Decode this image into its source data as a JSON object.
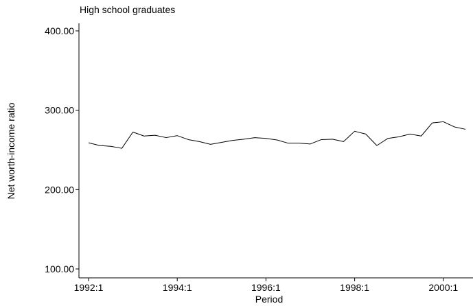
{
  "chart_data": {
    "type": "line",
    "title": "High school graduates",
    "xlabel": "Period",
    "ylabel": "Net worth-income ratio",
    "x_start": "1992:1",
    "x_frequency": "quarterly",
    "xlim": [
      "1992:1",
      "2000:3"
    ],
    "ylim": [
      100,
      400
    ],
    "x_ticks": [
      "1992:1",
      "1994:1",
      "1996:1",
      "1998:1",
      "2000:1"
    ],
    "y_ticks": [
      "100.00",
      "200.00",
      "300.00",
      "400.00"
    ],
    "y_tick_values": [
      100,
      200,
      300,
      400
    ],
    "grid": false,
    "legend": "none",
    "series": [
      {
        "x": [
          "1992:1",
          "1992:2",
          "1992:3",
          "1992:4",
          "1993:1",
          "1993:2",
          "1993:3",
          "1993:4",
          "1994:1",
          "1994:2",
          "1994:3",
          "1994:4",
          "1995:1",
          "1995:2",
          "1995:3",
          "1995:4",
          "1996:1",
          "1996:2",
          "1996:3",
          "1996:4",
          "1997:1",
          "1997:2",
          "1997:3",
          "1997:4",
          "1998:1",
          "1998:2",
          "1998:3",
          "1998:4",
          "1999:1",
          "1999:2",
          "1999:3",
          "1999:4",
          "2000:1",
          "2000:2",
          "2000:3"
        ],
        "values": [
          259,
          255.5,
          254.5,
          252,
          272.5,
          267.5,
          268.5,
          265.5,
          268,
          263,
          260.5,
          257,
          259.5,
          262,
          263.5,
          265.5,
          264.5,
          262.5,
          258.5,
          258.5,
          257.5,
          263,
          263.5,
          260.5,
          273.5,
          270,
          255.5,
          264.5,
          266.5,
          270,
          267.5,
          284,
          285.5,
          279,
          276
        ]
      }
    ]
  }
}
